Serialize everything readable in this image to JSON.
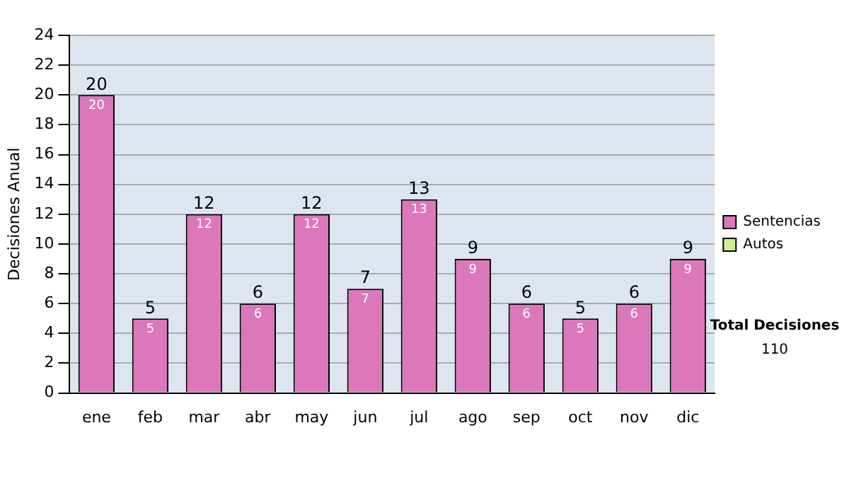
{
  "chart_data": {
    "type": "bar",
    "ylabel": "Decisiones Anual",
    "categories": [
      "ene",
      "feb",
      "mar",
      "abr",
      "may",
      "jun",
      "jul",
      "ago",
      "sep",
      "oct",
      "nov",
      "dic"
    ],
    "series": [
      {
        "name": "Sentencias",
        "color": "#dd77bb",
        "values": [
          20,
          5,
          12,
          6,
          12,
          7,
          13,
          9,
          6,
          5,
          6,
          9
        ],
        "value_labels": [
          "20",
          "5",
          "12",
          "6",
          "12",
          "7",
          "13",
          "9",
          "6",
          "5",
          "6",
          "9"
        ]
      },
      {
        "name": "Autos",
        "color": "#ccee99",
        "values": [
          0,
          0,
          0,
          0,
          0,
          0,
          0,
          0,
          0,
          0,
          0,
          0
        ]
      }
    ],
    "stacked": true,
    "totals": [
      "20",
      "5",
      "12",
      "6",
      "12",
      "7",
      "13",
      "9",
      "6",
      "5",
      "6",
      "9"
    ],
    "ylim": [
      0,
      24
    ],
    "yticks": [
      0,
      2,
      4,
      6,
      8,
      10,
      12,
      14,
      16,
      18,
      20,
      22,
      24
    ],
    "grid": "y",
    "legend": "right",
    "annotations": [
      "Total Decisiones",
      "110"
    ]
  }
}
